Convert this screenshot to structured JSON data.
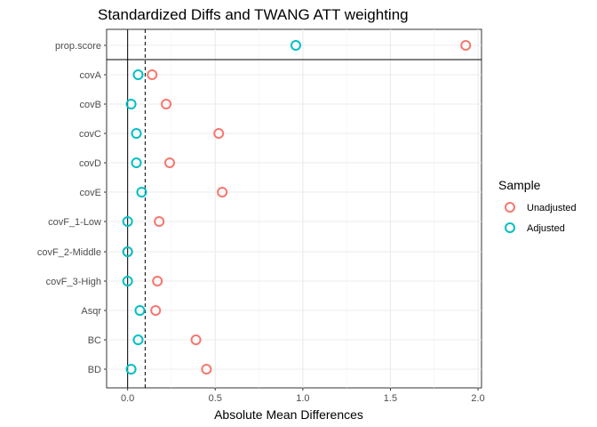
{
  "chart_data": {
    "type": "scatter",
    "title": "Standardized Diffs and TWANG ATT weighting",
    "xlabel": "Absolute Mean Differences",
    "ylabel": "",
    "xlim": [
      -0.12,
      2.02
    ],
    "x_ticks": [
      0.0,
      0.5,
      1.0,
      1.5,
      2.0
    ],
    "x_tick_labels": [
      "0.0",
      "0.5",
      "1.0",
      "1.5",
      "2.0"
    ],
    "threshold": 0.1,
    "grid": true,
    "legend_position": "right",
    "legend_title": "Sample",
    "categories": [
      "prop.score",
      "covA",
      "covB",
      "covC",
      "covD",
      "covE",
      "covF_1-Low",
      "covF_2-Middle",
      "covF_3-High",
      "Asqr",
      "BC",
      "BD"
    ],
    "series": [
      {
        "name": "Unadjusted",
        "color": "#F8766D",
        "values": [
          1.93,
          0.14,
          0.22,
          0.52,
          0.24,
          0.54,
          0.18,
          0.0,
          0.17,
          0.16,
          0.39,
          0.45
        ]
      },
      {
        "name": "Adjusted",
        "color": "#00BFC4",
        "values": [
          0.96,
          0.06,
          0.02,
          0.05,
          0.05,
          0.08,
          0.0,
          0.0,
          0.0,
          0.07,
          0.06,
          0.02
        ]
      }
    ]
  }
}
